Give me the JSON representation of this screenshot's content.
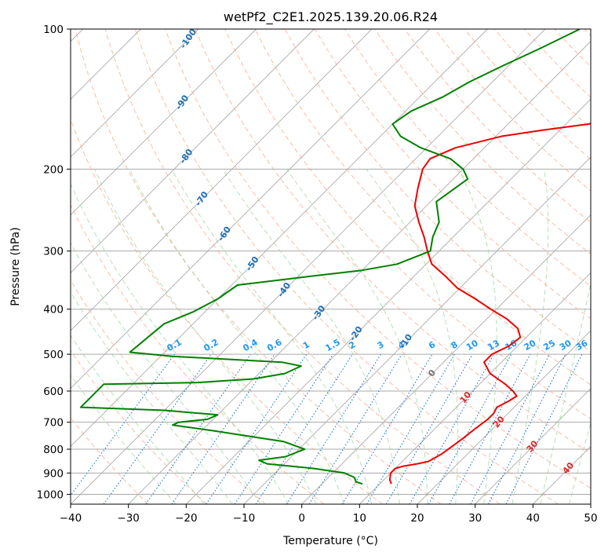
{
  "chart_data": {
    "type": "line",
    "title": "wetPf2_C2E1.2025.139.20.06.R24",
    "xlabel": "Temperature (°C)",
    "ylabel": "Pressure (hPa)",
    "xlim": [
      -40,
      50
    ],
    "ylim": [
      1050,
      100
    ],
    "y_scale": "log",
    "skew": true,
    "grid": true,
    "x_ticks": [
      -40,
      -30,
      -20,
      -10,
      0,
      10,
      20,
      30,
      40,
      50
    ],
    "y_ticks": [
      100,
      200,
      300,
      400,
      500,
      600,
      700,
      800,
      900,
      1000
    ],
    "series": [
      {
        "role": "temperature",
        "color": "#ee0000",
        "points": [
          [
            12,
            950
          ],
          [
            11,
            930
          ],
          [
            10,
            900
          ],
          [
            10,
            880
          ],
          [
            11,
            870
          ],
          [
            13,
            860
          ],
          [
            14.5,
            850
          ],
          [
            15.5,
            820
          ],
          [
            16,
            790
          ],
          [
            16.5,
            760
          ],
          [
            17,
            720
          ],
          [
            17.5,
            690
          ],
          [
            17.5,
            670
          ],
          [
            17,
            650
          ],
          [
            18,
            630
          ],
          [
            18.5,
            615
          ],
          [
            17,
            600
          ],
          [
            14.5,
            580
          ],
          [
            10,
            550
          ],
          [
            7,
            520
          ],
          [
            7,
            500
          ],
          [
            8.5,
            480
          ],
          [
            9,
            460
          ],
          [
            7,
            440
          ],
          [
            3.5,
            420
          ],
          [
            -1,
            400
          ],
          [
            -5.5,
            380
          ],
          [
            -10.5,
            360
          ],
          [
            -14.5,
            340
          ],
          [
            -19,
            320
          ],
          [
            -22,
            300
          ],
          [
            -25,
            280
          ],
          [
            -28.5,
            260
          ],
          [
            -32,
            240
          ],
          [
            -34.5,
            220
          ],
          [
            -37,
            200
          ],
          [
            -37.5,
            190
          ],
          [
            -35,
            180
          ],
          [
            -29,
            170
          ],
          [
            -23,
            165
          ],
          [
            -16,
            160
          ],
          [
            -10,
            150
          ],
          [
            -6,
            140
          ],
          [
            -1,
            130
          ],
          [
            4,
            120
          ],
          [
            10,
            110
          ],
          [
            14,
            100
          ]
        ]
      },
      {
        "role": "dewpoint",
        "color": "#008000",
        "points": [
          [
            7,
            950
          ],
          [
            5.5,
            940
          ],
          [
            4.5,
            920
          ],
          [
            2,
            900
          ],
          [
            -4,
            880
          ],
          [
            -13,
            860
          ],
          [
            -15,
            845
          ],
          [
            -11,
            830
          ],
          [
            -9,
            800
          ],
          [
            -14,
            770
          ],
          [
            -28,
            730
          ],
          [
            -36,
            710
          ],
          [
            -35.5,
            700
          ],
          [
            -31,
            690
          ],
          [
            -30,
            675
          ],
          [
            -40,
            660
          ],
          [
            -55,
            650
          ],
          [
            -55,
            580
          ],
          [
            -39,
            575
          ],
          [
            -30,
            565
          ],
          [
            -25.5,
            550
          ],
          [
            -24,
            530
          ],
          [
            -28,
            520
          ],
          [
            -48,
            505
          ],
          [
            -56,
            495
          ],
          [
            -55,
            430
          ],
          [
            -52,
            405
          ],
          [
            -50,
            380
          ],
          [
            -49,
            355
          ],
          [
            -38,
            340
          ],
          [
            -30,
            330
          ],
          [
            -25,
            320
          ],
          [
            -21.5,
            300
          ],
          [
            -23.5,
            280
          ],
          [
            -25,
            260
          ],
          [
            -29,
            235
          ],
          [
            -27.5,
            210
          ],
          [
            -30,
            200
          ],
          [
            -34,
            190
          ],
          [
            -41,
            180
          ],
          [
            -46.5,
            170
          ],
          [
            -50,
            160
          ],
          [
            -49,
            150
          ],
          [
            -46,
            140
          ],
          [
            -44,
            130
          ],
          [
            -41,
            120
          ],
          [
            -37.5,
            110
          ],
          [
            -34,
            100
          ]
        ]
      }
    ],
    "dry_adiabat_labels": [
      "-100",
      "-90",
      "-80",
      "-70",
      "-60",
      "-50",
      "-40",
      "-30",
      "-20",
      "-10"
    ],
    "mixing_ratio_labels": [
      "0.1",
      "0.2",
      "0.4",
      "0.6",
      "1",
      "1.5",
      "2",
      "3",
      "4",
      "6",
      "8",
      "10",
      "13",
      "16",
      "20",
      "25",
      "30",
      "36"
    ],
    "moist_adiabat_labels": [
      "0",
      "10",
      "20",
      "30",
      "40"
    ],
    "colors": {
      "isotherm": "#aaaaaa",
      "dry_adiabat": "#f4a78a",
      "moist_adiabat": "#8ecf8e",
      "mixing_ratio": "#1f77d4",
      "dry_adiabat_label": "#1f6fb5",
      "mixing_ratio_label": "#2196f3",
      "moist_label": "#d62728",
      "zero_label": "#707070"
    }
  }
}
